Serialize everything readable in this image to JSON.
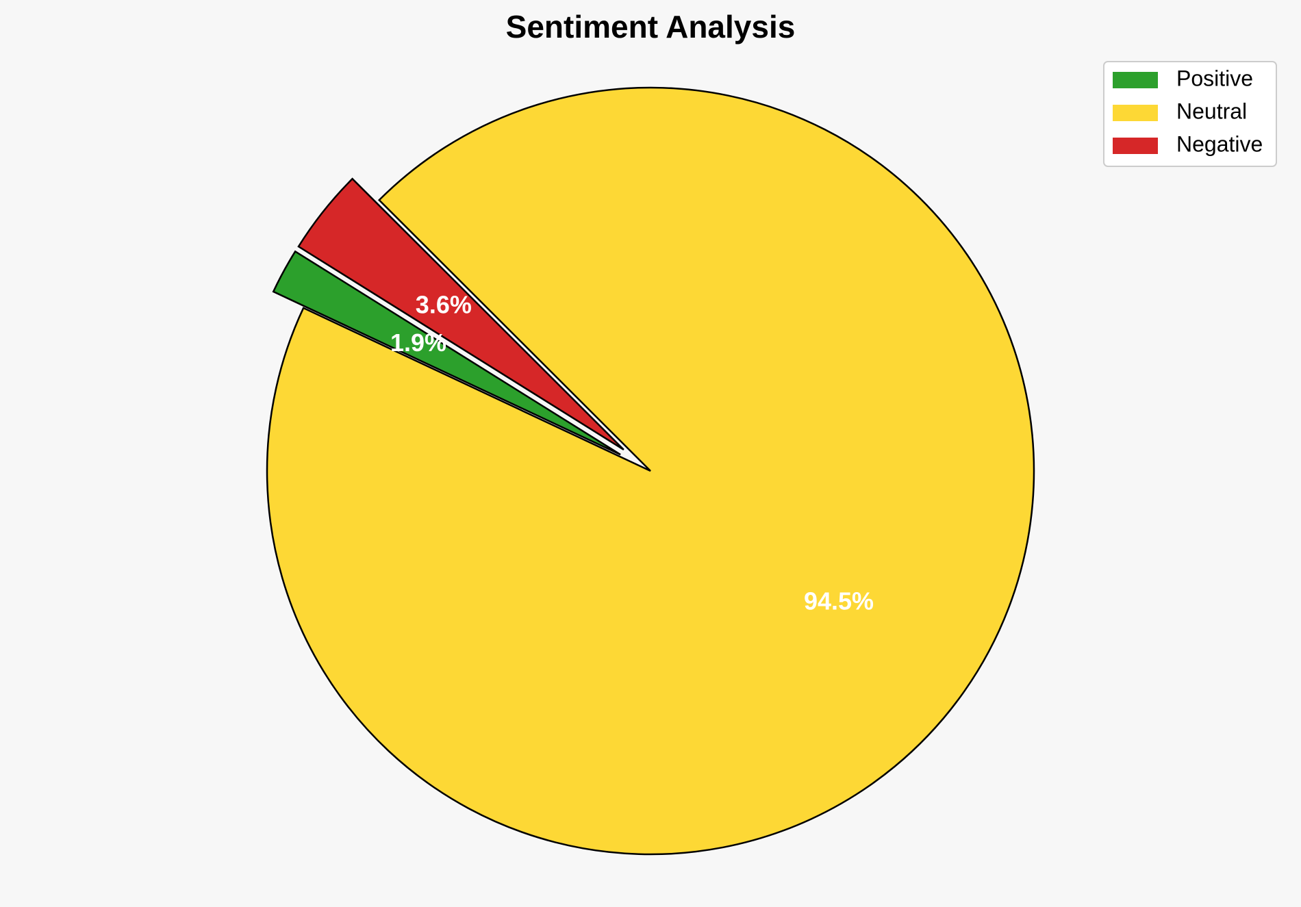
{
  "chart_data": {
    "type": "pie",
    "title": "Sentiment Analysis",
    "categories": [
      "Positive",
      "Neutral",
      "Negative"
    ],
    "values": [
      1.9,
      94.5,
      3.6
    ],
    "labels": [
      "1.9%",
      "94.5%",
      "3.6%"
    ],
    "colors": [
      "#2ca02c",
      "#fdd835",
      "#d62728"
    ],
    "exploded": [
      "Positive",
      "Negative"
    ],
    "start_angle_deg": 148,
    "direction": "counterclockwise",
    "legend_position": "top-right",
    "edge_color": "#000000"
  }
}
